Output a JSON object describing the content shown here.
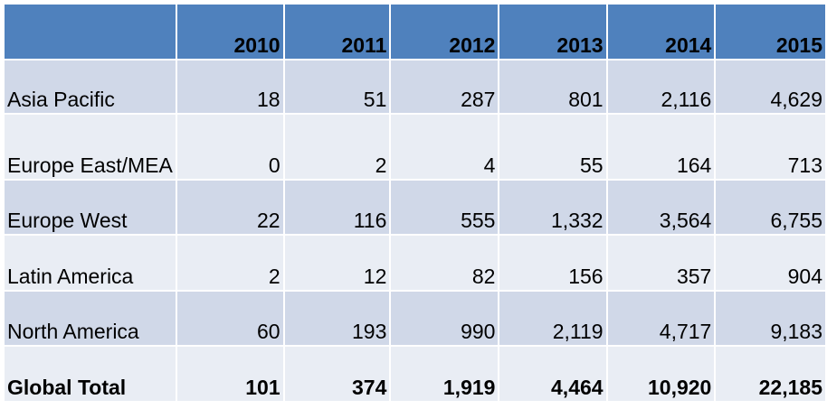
{
  "chart_data": {
    "type": "table",
    "columns": [
      "",
      "2010",
      "2011",
      "2012",
      "2013",
      "2014",
      "2015"
    ],
    "rows": [
      {
        "region": "Asia Pacific",
        "values": [
          "18",
          "51",
          "287",
          "801",
          "2,116",
          "4,629"
        ]
      },
      {
        "region": "Europe East/MEA",
        "values": [
          "0",
          "2",
          "4",
          "55",
          "164",
          "713"
        ]
      },
      {
        "region": "Europe West",
        "values": [
          "22",
          "116",
          "555",
          "1,332",
          "3,564",
          "6,755"
        ]
      },
      {
        "region": "Latin America",
        "values": [
          "2",
          "12",
          "82",
          "156",
          "357",
          "904"
        ]
      },
      {
        "region": "North America",
        "values": [
          "60",
          "193",
          "990",
          "2,119",
          "4,717",
          "9,183"
        ]
      },
      {
        "region": "Global Total",
        "values": [
          "101",
          "374",
          "1,919",
          "4,464",
          "10,920",
          "22,185"
        ]
      }
    ],
    "colors": {
      "header": "#4f81bd",
      "row_band_dark": "#d0d8e8",
      "row_band_light": "#e9edf4"
    }
  }
}
